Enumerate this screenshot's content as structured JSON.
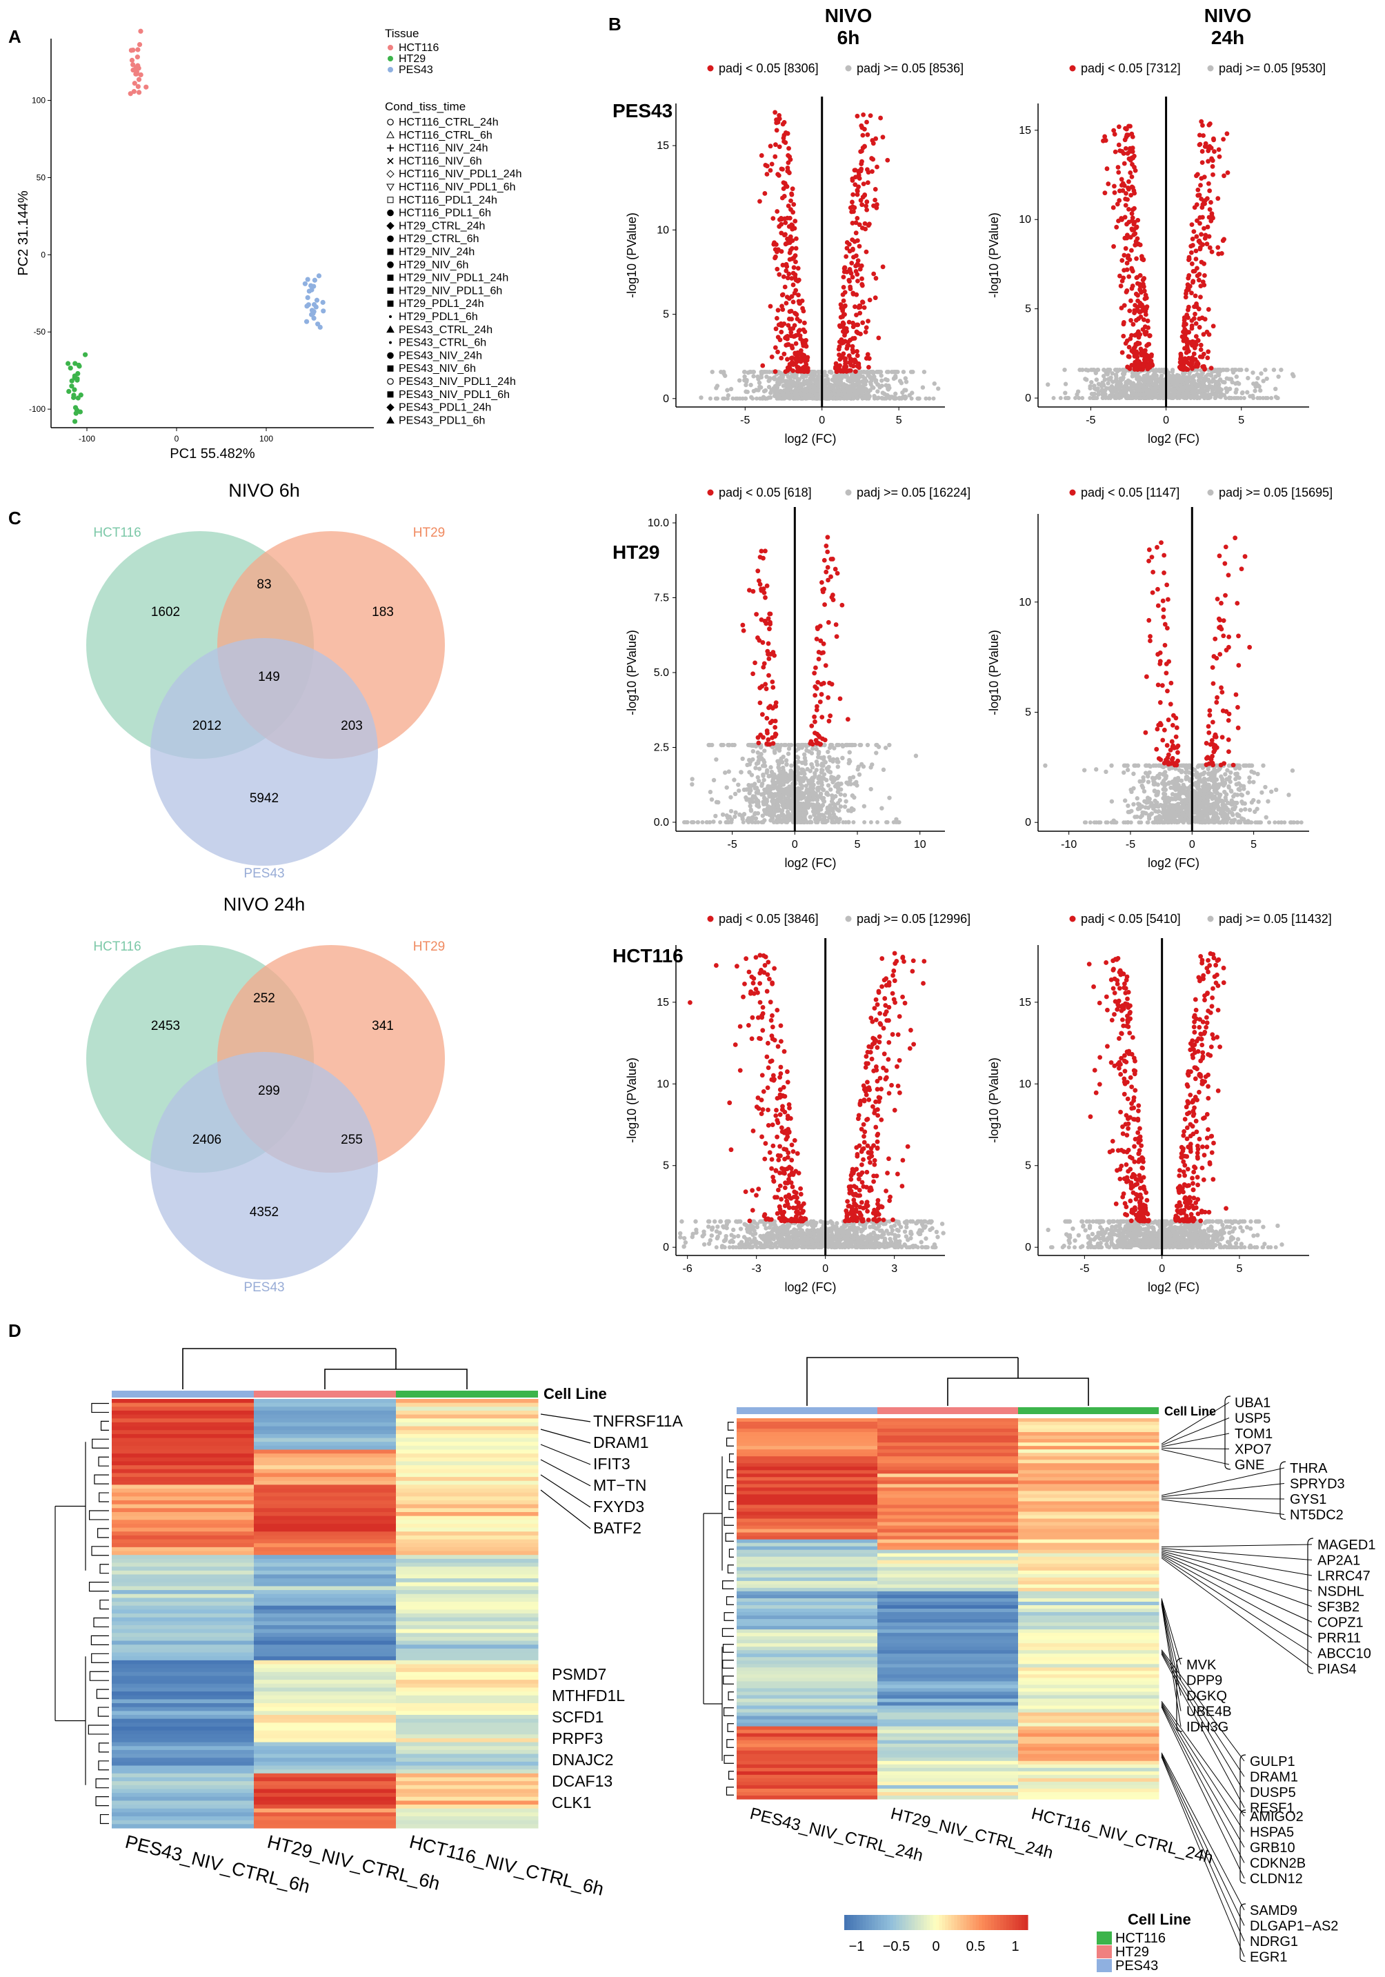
{
  "panel_labels": {
    "a": "A",
    "b": "B",
    "c": "C",
    "d": "D"
  },
  "colors": {
    "hct116": "#f08080",
    "ht29": "#3cb44b",
    "pes43": "#8fb0e0",
    "sig": "#d7191c",
    "nonsig": "#bdbdbd",
    "venn_hct116": "#9fd6bd",
    "venn_ht29": "#f6a88a",
    "venn_pes43": "#b4c3e4"
  },
  "chart_data": [
    {
      "id": "pca",
      "type": "scatter",
      "xlabel": "PC1 55.482%",
      "ylabel": "PC2 31.144%",
      "xlim": [
        -140,
        220
      ],
      "ylim": [
        -112,
        140
      ],
      "xticks": [
        -100,
        0,
        100
      ],
      "yticks": [
        -100,
        -50,
        0,
        50,
        100
      ],
      "legend": {
        "tissue_title": "Tissue",
        "tissue": [
          {
            "label": "HCT116",
            "color": "#f08080"
          },
          {
            "label": "HT29",
            "color": "#3cb44b"
          },
          {
            "label": "PES43",
            "color": "#8fb0e0"
          }
        ],
        "cond_title": "Cond_tiss_time",
        "conditions": [
          {
            "label": "HCT116_CTRL_24h",
            "shape": "circle-open"
          },
          {
            "label": "HCT116_CTRL_6h",
            "shape": "triangle-open"
          },
          {
            "label": "HCT116_NIV_24h",
            "shape": "plus"
          },
          {
            "label": "HCT116_NIV_6h",
            "shape": "cross"
          },
          {
            "label": "HCT116_NIV_PDL1_24h",
            "shape": "diamond-open"
          },
          {
            "label": "HCT116_NIV_PDL1_6h",
            "shape": "triangle-down-open"
          },
          {
            "label": "HCT116_PDL1_24h",
            "shape": "square-cross"
          },
          {
            "label": "HCT116_PDL1_6h",
            "shape": "circle"
          },
          {
            "label": "HT29_CTRL_24h",
            "shape": "diamond"
          },
          {
            "label": "HT29_CTRL_6h",
            "shape": "circle"
          },
          {
            "label": "HT29_NIV_24h",
            "shape": "square"
          },
          {
            "label": "HT29_NIV_6h",
            "shape": "circle"
          },
          {
            "label": "HT29_NIV_PDL1_24h",
            "shape": "square"
          },
          {
            "label": "HT29_NIV_PDL1_6h",
            "shape": "square"
          },
          {
            "label": "HT29_PDL1_24h",
            "shape": "square"
          },
          {
            "label": "HT29_PDL1_6h",
            "shape": "dot"
          },
          {
            "label": "PES43_CTRL_24h",
            "shape": "triangle"
          },
          {
            "label": "PES43_CTRL_6h",
            "shape": "dot"
          },
          {
            "label": "PES43_NIV_24h",
            "shape": "circle"
          },
          {
            "label": "PES43_NIV_6h",
            "shape": "square"
          },
          {
            "label": "PES43_NIV_PDL1_24h",
            "shape": "circle-open"
          },
          {
            "label": "PES43_NIV_PDL1_6h",
            "shape": "square"
          },
          {
            "label": "PES43_PDL1_24h",
            "shape": "diamond"
          },
          {
            "label": "PES43_PDL1_6h",
            "shape": "triangle"
          }
        ]
      },
      "clusters": [
        {
          "tissue": "HCT116",
          "color": "#f08080",
          "center": [
            -45,
            118
          ],
          "spread": [
            5,
            9
          ],
          "n": 24
        },
        {
          "tissue": "HT29",
          "color": "#3cb44b",
          "center": [
            -112,
            -88
          ],
          "spread": [
            5,
            12
          ],
          "n": 24
        },
        {
          "tissue": "PES43",
          "color": "#8fb0e0",
          "center": [
            152,
            -30
          ],
          "spread": [
            5,
            8
          ],
          "n": 24
        }
      ]
    },
    {
      "id": "volcano",
      "type": "scatter",
      "column_titles": [
        [
          "NIVO",
          "6h"
        ],
        [
          "NIVO",
          "24h"
        ]
      ],
      "row_titles": [
        "PES43",
        "HT29",
        "HCT116"
      ],
      "xlabel": "log2 (FC)",
      "ylabel": "-log10 (PValue)",
      "legend_sig": "padj < 0.05",
      "legend_nonsig": "padj >= 0.05",
      "panels": [
        {
          "row": 0,
          "col": 0,
          "sig_n": "[8306]",
          "nonsig_n": "[8536]",
          "xlim": [
            -9.5,
            8
          ],
          "ylim": [
            -0.5,
            17.5
          ],
          "xticks": [
            -5,
            0,
            5
          ],
          "yticks": [
            0,
            5,
            10,
            15
          ],
          "vline": 0,
          "thr": 1.6,
          "ymax_sig": 17
        },
        {
          "row": 0,
          "col": 1,
          "sig_n": "[7312]",
          "nonsig_n": "[9530]",
          "xlim": [
            -8.5,
            9.5
          ],
          "ylim": [
            -0.5,
            16.5
          ],
          "xticks": [
            -5,
            0,
            5
          ],
          "yticks": [
            0,
            5,
            10,
            15
          ],
          "vline": 0,
          "thr": 1.6,
          "ymax_sig": 15.5
        },
        {
          "row": 1,
          "col": 0,
          "sig_n": "[618]",
          "nonsig_n": "[16224]",
          "xlim": [
            -9.5,
            12
          ],
          "ylim": [
            -0.3,
            10.3
          ],
          "xticks": [
            -5,
            0,
            5,
            10
          ],
          "yticks": [
            0.0,
            2.5,
            5.0,
            7.5,
            10.0
          ],
          "ytick_fmt": "1",
          "vline": 0,
          "thr": 2.6,
          "ymax_sig": 9.6
        },
        {
          "row": 1,
          "col": 1,
          "sig_n": "[1147]",
          "nonsig_n": "[15695]",
          "xlim": [
            -12.5,
            9.5
          ],
          "ylim": [
            -0.4,
            14
          ],
          "xticks": [
            -10,
            -5,
            0,
            5
          ],
          "yticks": [
            0,
            5,
            10
          ],
          "vline": 0,
          "thr": 2.6,
          "ymax_sig": 13
        },
        {
          "row": 2,
          "col": 0,
          "sig_n": "[3846]",
          "nonsig_n": "[12996]",
          "xlim": [
            -6.5,
            5.2
          ],
          "ylim": [
            -0.5,
            18.5
          ],
          "xticks": [
            -6,
            -3,
            0,
            3
          ],
          "yticks": [
            0,
            5,
            10,
            15
          ],
          "vline": 0,
          "thr": 1.6,
          "ymax_sig": 18
        },
        {
          "row": 2,
          "col": 1,
          "sig_n": "[5410]",
          "nonsig_n": "[11432]",
          "xlim": [
            -8,
            9.5
          ],
          "ylim": [
            -0.5,
            18.5
          ],
          "xticks": [
            -5,
            0,
            5
          ],
          "yticks": [
            0,
            5,
            10,
            15
          ],
          "vline": 0,
          "thr": 1.6,
          "ymax_sig": 18
        }
      ]
    },
    {
      "id": "venn",
      "type": "venn",
      "diagrams": [
        {
          "title": "NIVO 6h",
          "sets": [
            "HCT116",
            "HT29",
            "PES43"
          ],
          "regions": {
            "a": 1602,
            "b": 183,
            "c": 5942,
            "ab": 83,
            "ac": 2012,
            "bc": 203,
            "abc": 149
          }
        },
        {
          "title": "NIVO 24h",
          "sets": [
            "HCT116",
            "HT29",
            "PES43"
          ],
          "regions": {
            "a": 2453,
            "b": 341,
            "c": 4352,
            "ab": 252,
            "ac": 2406,
            "bc": 255,
            "abc": 299
          }
        }
      ]
    },
    {
      "id": "heatmap",
      "type": "heatmap",
      "annotation_title": "Cell Line",
      "legend_title": "Cell Line",
      "legend_items": [
        {
          "label": "HCT116",
          "color": "#3cb44b"
        },
        {
          "label": "HT29",
          "color": "#f08080"
        },
        {
          "label": "PES43",
          "color": "#8fb0e0"
        }
      ],
      "color_scale": {
        "min": -1,
        "max": 1,
        "ticks": [
          "−1",
          "−0.5",
          "0",
          "0.5",
          "1"
        ]
      },
      "maps": [
        {
          "columns": [
            "PES43_NIV_CTRL_6h",
            "HT29_NIV_CTRL_6h",
            "HCT116_NIV_CTRL_6h"
          ],
          "column_colors": [
            "#8fb0e0",
            "#f08080",
            "#3cb44b"
          ],
          "gene_groups": [
            [
              "TNFRSF11A",
              "DRAM1",
              "IFIT3",
              "MT−TN",
              "FXYD3",
              "BATF2"
            ],
            [
              "PSMD7",
              "MTHFD1L",
              "SCFD1",
              "PRPF3",
              "DNAJC2",
              "DCAF13",
              "CLK1"
            ]
          ]
        },
        {
          "columns": [
            "PES43_NIV_CTRL_24h",
            "HT29_NIV_CTRL_24h",
            "HCT116_NIV_CTRL_24h"
          ],
          "column_colors": [
            "#8fb0e0",
            "#f08080",
            "#3cb44b"
          ],
          "gene_groups": [
            [
              "UBA1",
              "USP5",
              "TOM1",
              "XPO7",
              "GNE"
            ],
            [
              "THRA",
              "SPRYD3",
              "GYS1",
              "NT5DC2"
            ],
            [
              "MAGED1",
              "AP2A1",
              "LRRC47",
              "NSDHL",
              "SF3B2",
              "COPZ1",
              "PRR11",
              "ABCC10",
              "PIAS4"
            ],
            [
              "MVK",
              "DPP9",
              "DGKQ",
              "UBE4B",
              "IDH3G"
            ],
            [
              "GULP1",
              "DRAM1",
              "DUSP5",
              "RESF1"
            ],
            [
              "AMIGO2",
              "HSPA5",
              "GRB10",
              "CDKN2B",
              "CLDN12"
            ],
            [
              "SAMD9",
              "DLGAP1−AS2",
              "NDRG1",
              "EGR1"
            ]
          ]
        }
      ]
    }
  ]
}
